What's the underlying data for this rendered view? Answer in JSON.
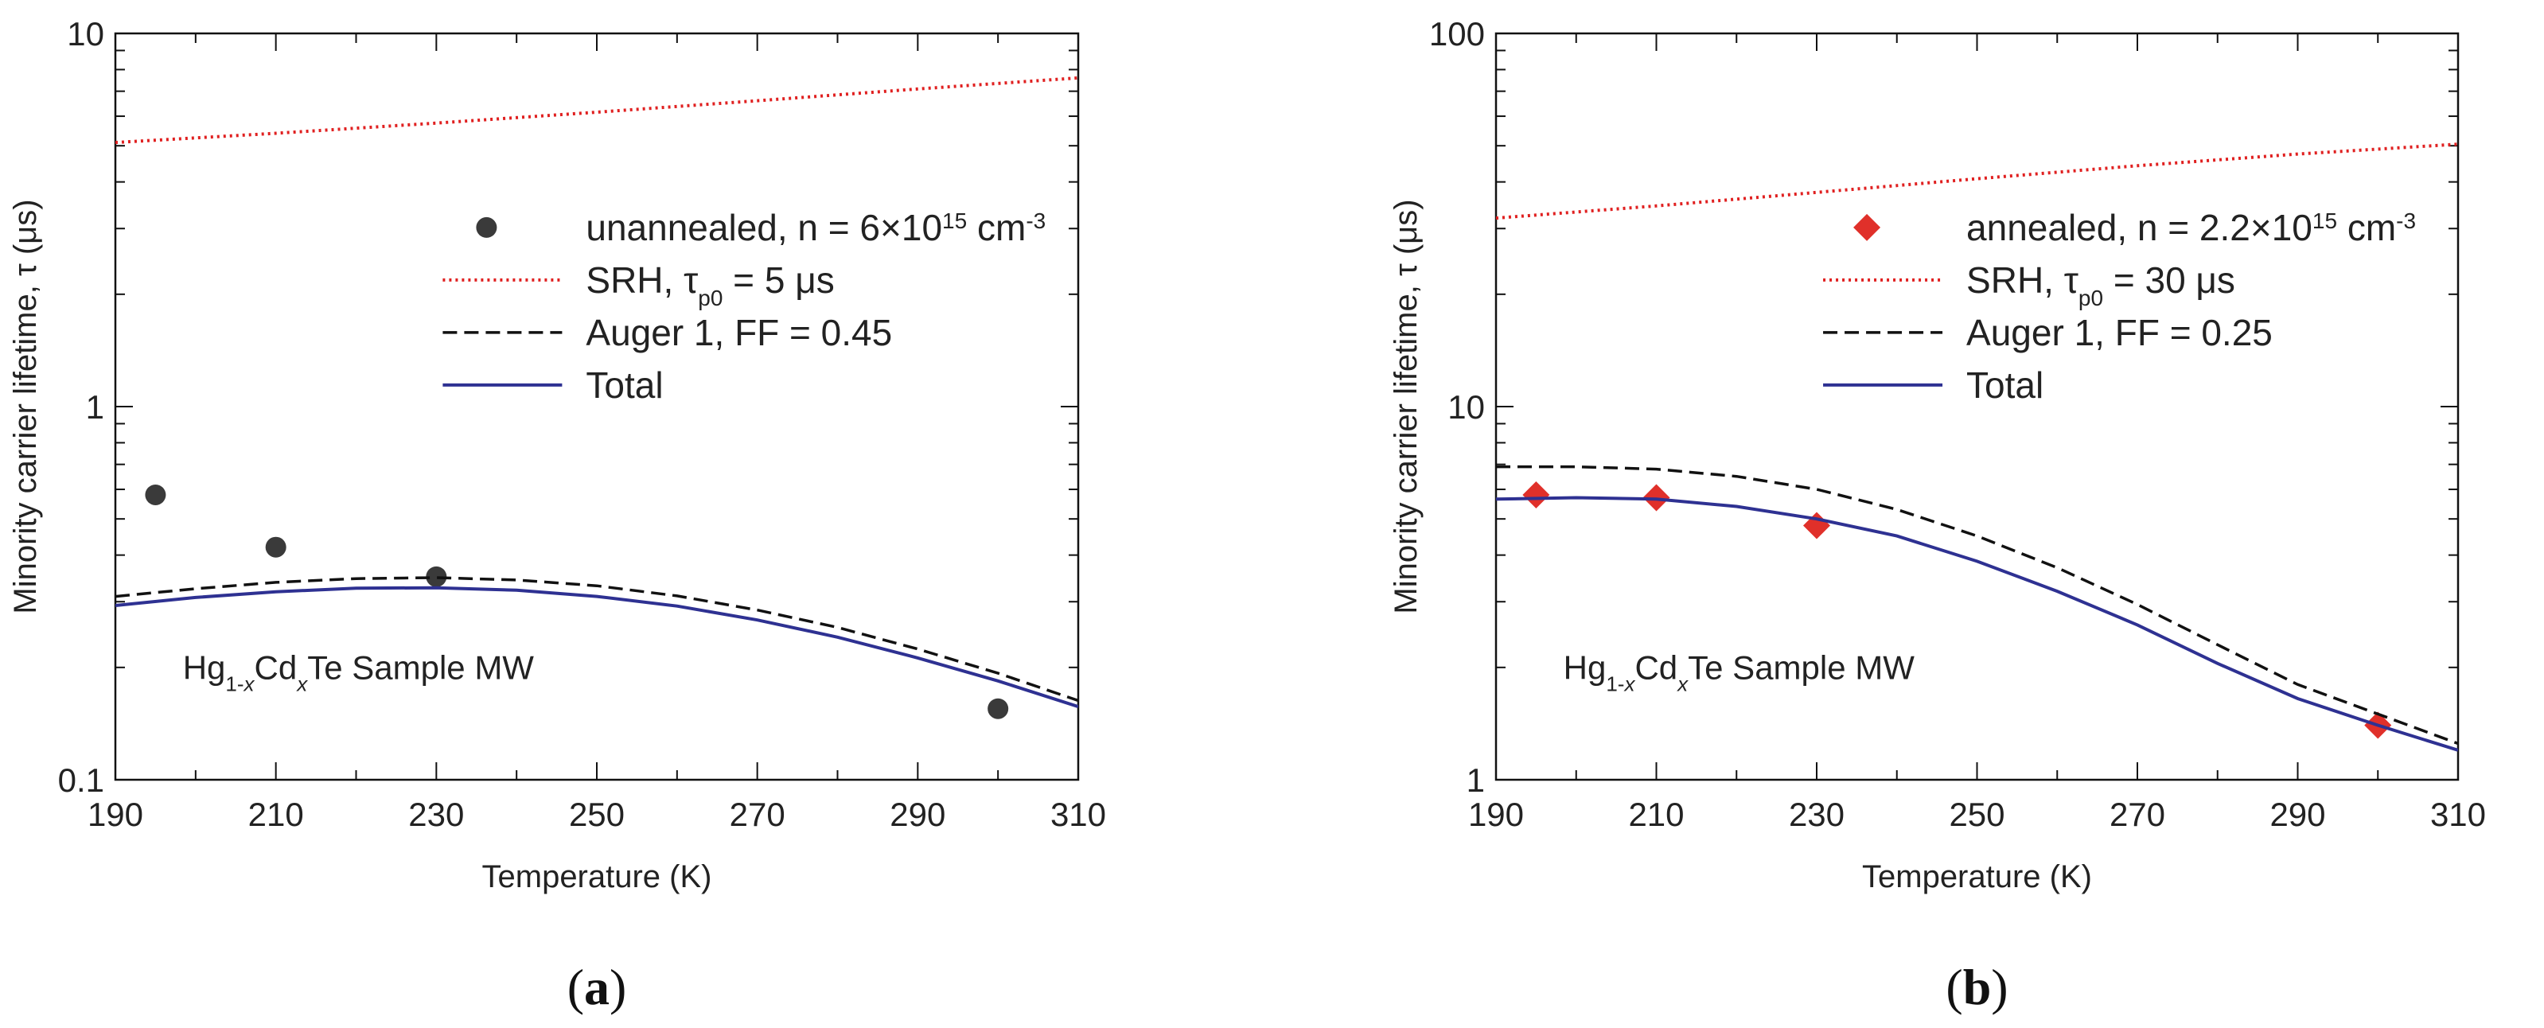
{
  "chart_data": [
    {
      "type": "line",
      "panel_label": "(a)",
      "xlabel": "Temperature (K)",
      "ylabel": "Minority carrier lifetime, τ (μs)",
      "x_range": [
        190,
        310
      ],
      "y_range": [
        0.1,
        10
      ],
      "y_scale": "log",
      "x_ticks": [
        "190",
        "210",
        "230",
        "250",
        "270",
        "290",
        "310"
      ],
      "y_ticks": [
        "0.1",
        "1",
        "10"
      ],
      "annotation": {
        "pre": "Hg",
        "sub1": "1-",
        "subx1": "x",
        "mid": "Cd",
        "subx2": "x",
        "post": "Te Sample MW"
      },
      "legend_position": "center-right",
      "legend": {
        "points": {
          "pre": "unannealed, n = 6×10",
          "sup": "15",
          "post": " cm",
          "sup2": "-3"
        },
        "srh": {
          "pre": "SRH, τ",
          "sub": "p0",
          "post": " = 5 μs"
        },
        "auger": "Auger 1, FF = 0.45",
        "total": "Total"
      },
      "series": [
        {
          "kind": "points",
          "marker": "circle",
          "color": "#3a3a3a",
          "x": [
            195,
            210,
            230,
            300
          ],
          "y": [
            0.58,
            0.42,
            0.35,
            0.155
          ]
        },
        {
          "kind": "line",
          "style": "dotted",
          "color": "#e02020",
          "x": [
            190,
            210,
            230,
            250,
            270,
            290,
            310
          ],
          "y": [
            5.1,
            5.4,
            5.75,
            6.15,
            6.6,
            7.1,
            7.6
          ]
        },
        {
          "kind": "line",
          "style": "dashed",
          "color": "#111111",
          "x": [
            190,
            200,
            210,
            220,
            230,
            240,
            250,
            260,
            270,
            280,
            290,
            300,
            310
          ],
          "y": [
            0.31,
            0.325,
            0.338,
            0.346,
            0.348,
            0.343,
            0.331,
            0.311,
            0.285,
            0.256,
            0.224,
            0.193,
            0.163
          ]
        },
        {
          "kind": "line",
          "style": "solid",
          "color": "#2e3192",
          "x": [
            190,
            200,
            210,
            220,
            230,
            240,
            250,
            260,
            270,
            280,
            290,
            300,
            310
          ],
          "y": [
            0.293,
            0.308,
            0.319,
            0.326,
            0.327,
            0.322,
            0.31,
            0.292,
            0.268,
            0.241,
            0.212,
            0.184,
            0.157
          ]
        }
      ]
    },
    {
      "type": "line",
      "panel_label": "(b)",
      "xlabel": "Temperature (K)",
      "ylabel": "Minority carrier lifetime, τ (μs)",
      "x_range": [
        190,
        310
      ],
      "y_range": [
        1,
        100
      ],
      "y_scale": "log",
      "x_ticks": [
        "190",
        "210",
        "230",
        "250",
        "270",
        "290",
        "310"
      ],
      "y_ticks": [
        "1",
        "10",
        "100"
      ],
      "annotation": {
        "pre": "Hg",
        "sub1": "1-",
        "subx1": "x",
        "mid": "Cd",
        "subx2": "x",
        "post": "Te Sample MW"
      },
      "legend_position": "center-right",
      "legend": {
        "points": {
          "pre": "annealed, n = 2.2×10",
          "sup": "15",
          "post": " cm",
          "sup2": "-3"
        },
        "srh": {
          "pre": "SRH, τ",
          "sub": "p0",
          "post": " = 30 μs"
        },
        "auger": "Auger 1, FF = 0.25",
        "total": "Total"
      },
      "series": [
        {
          "kind": "points",
          "marker": "diamond",
          "color": "#e0302a",
          "x": [
            195,
            210,
            230,
            300
          ],
          "y": [
            5.8,
            5.7,
            4.8,
            1.4
          ]
        },
        {
          "kind": "line",
          "style": "dotted",
          "color": "#e02020",
          "x": [
            190,
            210,
            230,
            250,
            270,
            290,
            310
          ],
          "y": [
            32,
            34.5,
            37.5,
            40.8,
            44.2,
            47.5,
            50.5
          ]
        },
        {
          "kind": "line",
          "style": "dashed",
          "color": "#111111",
          "x": [
            190,
            200,
            210,
            220,
            230,
            240,
            250,
            260,
            270,
            280,
            290,
            300,
            310
          ],
          "y": [
            6.9,
            6.9,
            6.8,
            6.5,
            6.0,
            5.3,
            4.5,
            3.7,
            2.95,
            2.3,
            1.8,
            1.5,
            1.25
          ]
        },
        {
          "kind": "line",
          "style": "solid",
          "color": "#2e3192",
          "x": [
            190,
            200,
            210,
            220,
            230,
            240,
            250,
            260,
            270,
            280,
            290,
            300,
            310
          ],
          "y": [
            5.65,
            5.7,
            5.65,
            5.4,
            5.0,
            4.5,
            3.85,
            3.2,
            2.6,
            2.05,
            1.65,
            1.4,
            1.2
          ]
        }
      ]
    }
  ]
}
